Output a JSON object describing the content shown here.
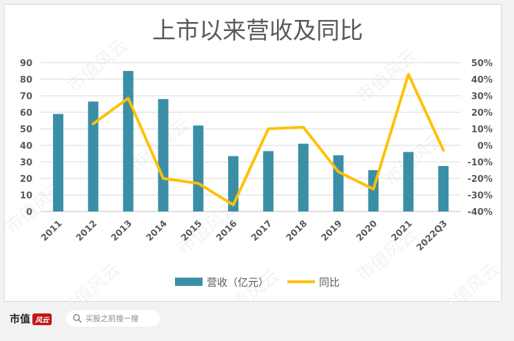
{
  "footer": {
    "brand_text": "市值",
    "brand_logo_text": "风云",
    "search_placeholder": "买股之前搜一搜"
  },
  "watermark": "市值风云",
  "colors": {
    "bar": "#3a8fa6",
    "line": "#ffc000",
    "title": "#595959",
    "axis_text": "#595959",
    "grid": "#d9d9d9"
  },
  "chart_data": {
    "type": "bar",
    "title": "上市以来营收及同比",
    "categories": [
      "2011",
      "2012",
      "2013",
      "2014",
      "2015",
      "2016",
      "2017",
      "2018",
      "2019",
      "2020",
      "2021",
      "2022Q3"
    ],
    "series": [
      {
        "name": "营收（亿元）",
        "type": "bar",
        "axis": "left",
        "values": [
          59,
          66.5,
          85,
          68,
          52,
          33.5,
          36.5,
          41,
          34,
          25,
          36,
          27.5
        ]
      },
      {
        "name": "同比",
        "type": "line",
        "axis": "right",
        "values": [
          null,
          13,
          28.5,
          -20,
          -23,
          -36,
          10,
          11,
          -16,
          -26.5,
          43,
          -3
        ]
      }
    ],
    "y_left": {
      "min": 0,
      "max": 90,
      "step": 10,
      "ticks": [
        "0",
        "10",
        "20",
        "30",
        "40",
        "50",
        "60",
        "70",
        "80",
        "90"
      ]
    },
    "y_right": {
      "min": -40,
      "max": 50,
      "step": 10,
      "ticks": [
        "-40%",
        "-30%",
        "-20%",
        "-10%",
        "0%",
        "10%",
        "20%",
        "30%",
        "40%",
        "50%"
      ]
    },
    "legend": "bottom",
    "grid": true
  }
}
